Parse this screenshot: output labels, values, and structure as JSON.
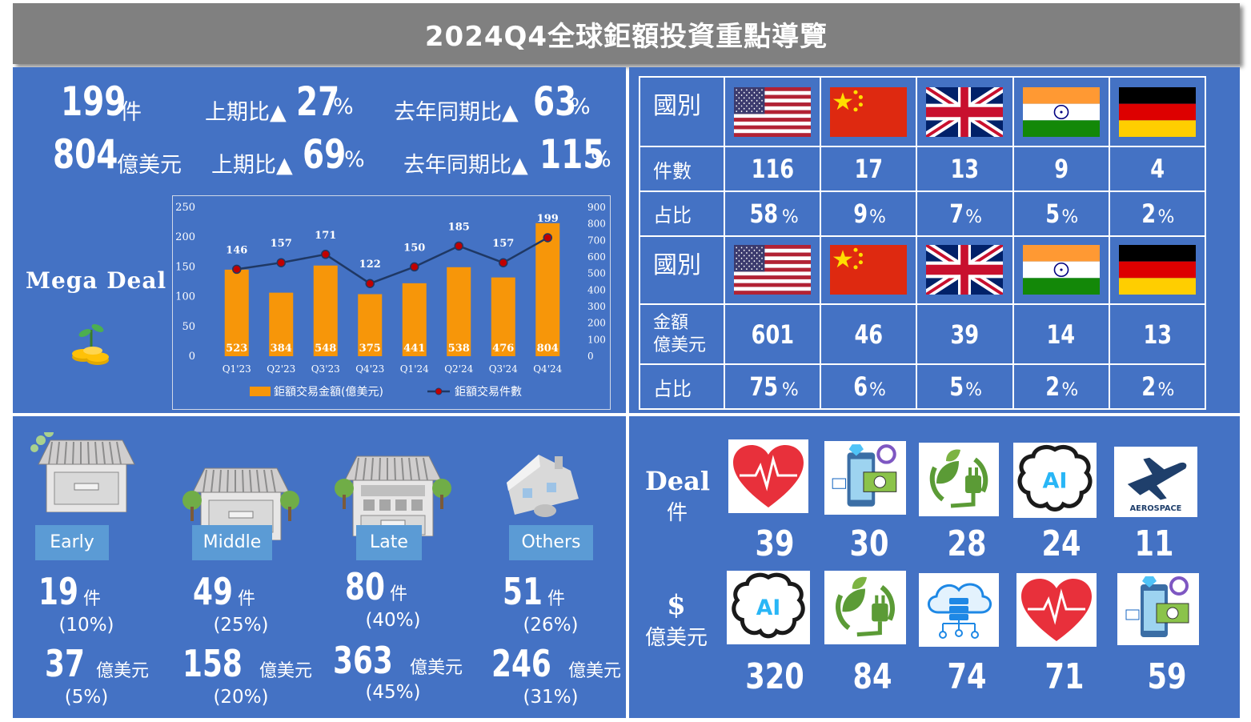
{
  "title": "2024Q4全球鉅額投資重點導覽",
  "summary": {
    "row1": {
      "count": "199",
      "count_unit": "件",
      "qoq_label": "上期比▲",
      "qoq_value": "27",
      "qoq_unit": "%",
      "yoy_label": "去年同期比▲",
      "yoy_value": "63",
      "yoy_unit": " %"
    },
    "row2": {
      "amount": "804",
      "amount_unit": "億美元",
      "qoq_label": "上期比▲",
      "qoq_value": "69",
      "qoq_unit": "%",
      "yoy_label": "去年同期比▲",
      "yoy_value": "115",
      "yoy_unit": "%"
    }
  },
  "mega_deal_label": "Mega Deal",
  "chart_data": {
    "type": "bar",
    "categories": [
      "Q1'23",
      "Q2'23",
      "Q3'23",
      "Q4'23",
      "Q1'24",
      "Q2'24",
      "Q3'24",
      "Q4'24"
    ],
    "series": [
      {
        "name": "鉅額交易金額(億美元)",
        "type": "bar",
        "axis": "right",
        "values": [
          523,
          384,
          548,
          375,
          441,
          538,
          476,
          804
        ],
        "color": "#f79609"
      },
      {
        "name": "鉅額交易件數",
        "type": "line",
        "axis": "left",
        "values": [
          146,
          157,
          171,
          122,
          150,
          185,
          157,
          199
        ],
        "color": "#1f3864"
      }
    ],
    "left_axis": {
      "min": 0,
      "max": 250,
      "ticks": [
        "0",
        "50",
        "100",
        "150",
        "200",
        "250"
      ]
    },
    "right_axis": {
      "min": 0,
      "max": 900,
      "ticks": [
        "0",
        "100",
        "200",
        "300",
        "400",
        "500",
        "600",
        "700",
        "800",
        "900"
      ]
    },
    "legend_position": "bottom",
    "grid": false
  },
  "country_table": {
    "header_label": "國別",
    "countries": [
      "us-flag",
      "cn-flag",
      "uk-flag",
      "in-flag",
      "de-flag"
    ],
    "count_label": "件數",
    "counts": [
      "116",
      "17",
      "13",
      "9",
      "4"
    ],
    "share_label": "占比",
    "count_shares": [
      "58",
      "9",
      "7",
      "5",
      "2"
    ],
    "amount_label_1": "金額",
    "amount_label_2": "億美元",
    "amounts": [
      "601",
      "46",
      "39",
      "14",
      "13"
    ],
    "amount_shares": [
      "75",
      "6",
      "5",
      "2",
      "2"
    ],
    "pct_unit": "%"
  },
  "stages": [
    {
      "label": "Early",
      "count": "19",
      "count_unit": "件",
      "count_pct": "(10%)",
      "amount": "37",
      "amount_unit": "億美元",
      "amount_pct": "(5%)"
    },
    {
      "label": "Middle",
      "count": "49",
      "count_unit": "件",
      "count_pct": "(25%)",
      "amount": "158",
      "amount_unit": "億美元",
      "amount_pct": "(20%)"
    },
    {
      "label": "Late",
      "count": "80",
      "count_unit": "件",
      "count_pct": "(40%)",
      "amount": "363",
      "amount_unit": "億美元",
      "amount_pct": "(45%)"
    },
    {
      "label": "Others",
      "count": "51",
      "count_unit": "件",
      "count_pct": "(26%)",
      "amount": "246",
      "amount_unit": "億美元",
      "amount_pct": "(31%)"
    }
  ],
  "deals": {
    "count_label": "Deal",
    "count_unit": "件",
    "count_icons": [
      "heart-pulse-icon",
      "fintech-phone-icon",
      "green-energy-icon",
      "ai-brain-icon",
      "aerospace-icon"
    ],
    "count_values": [
      "39",
      "30",
      "28",
      "24",
      "11"
    ],
    "amount_label": "$",
    "amount_unit": "億美元",
    "amount_icons": [
      "ai-brain-icon",
      "green-energy-icon",
      "cloud-data-icon",
      "heart-pulse-icon",
      "fintech-phone-icon"
    ],
    "amount_values": [
      "320",
      "84",
      "74",
      "71",
      "59"
    ],
    "aerospace_text": "AEROSPACE",
    "ai_text": "AI"
  }
}
